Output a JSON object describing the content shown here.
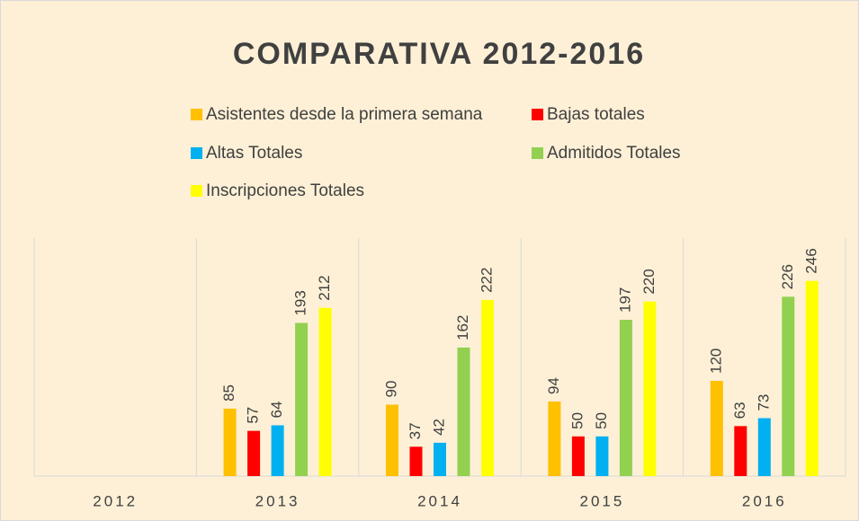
{
  "chart_data": {
    "type": "bar",
    "title": "COMPARATIVA 2012-2016",
    "categories": [
      "2012",
      "2013",
      "2014",
      "2015",
      "2016"
    ],
    "series": [
      {
        "name": "Asistentes desde la primera semana",
        "color": "#ffc000",
        "values": [
          null,
          85,
          90,
          94,
          120
        ]
      },
      {
        "name": "Bajas totales",
        "color": "#ff0000",
        "values": [
          null,
          57,
          37,
          50,
          63
        ]
      },
      {
        "name": "Altas Totales",
        "color": "#00b0f0",
        "values": [
          null,
          64,
          42,
          50,
          73
        ]
      },
      {
        "name": "Admitidos Totales",
        "color": "#92d050",
        "values": [
          null,
          193,
          162,
          197,
          226
        ]
      },
      {
        "name": "Inscripciones Totales",
        "color": "#ffff00",
        "values": [
          null,
          212,
          222,
          220,
          246
        ]
      }
    ],
    "ylim": [
      0,
      300
    ]
  }
}
